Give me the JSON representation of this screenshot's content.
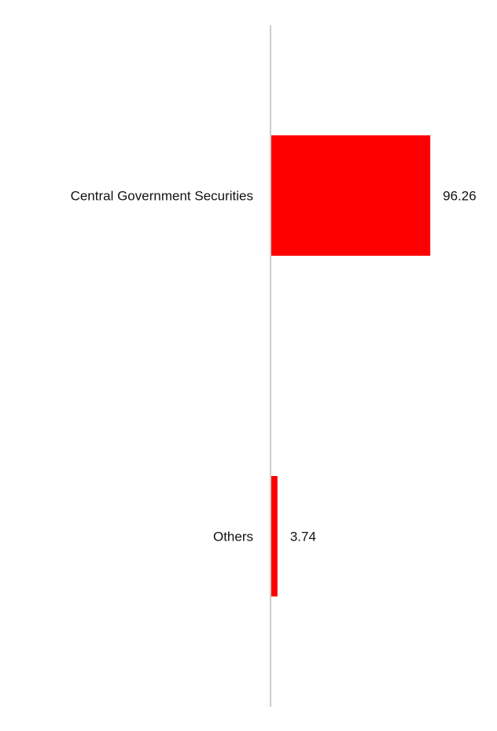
{
  "chart_data": {
    "type": "bar",
    "orientation": "horizontal",
    "categories": [
      "Central Government Securities",
      "Others"
    ],
    "values": [
      96.26,
      3.74
    ],
    "value_labels": [
      "96.26",
      "3.74"
    ],
    "title": "",
    "xlabel": "",
    "ylabel": "",
    "xlim": [
      0,
      100
    ],
    "grid": false,
    "legend": "none",
    "colors": {
      "bar": "#ff0000",
      "axis": "#cccccc",
      "text": "#111111"
    }
  }
}
